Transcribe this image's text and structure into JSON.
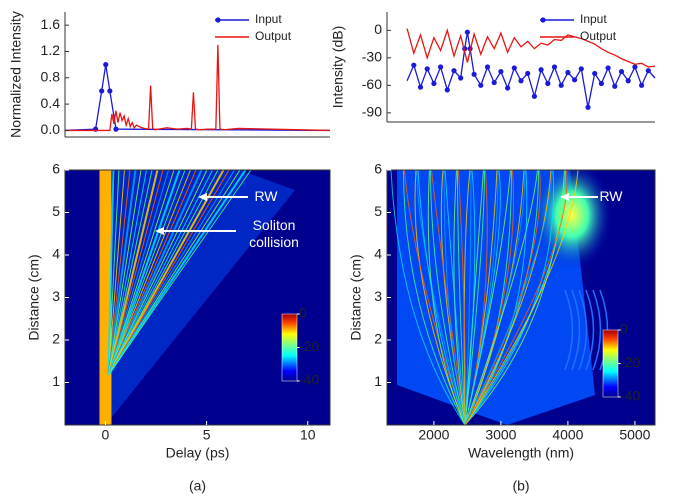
{
  "chart_data": [
    {
      "type": "line",
      "y_label": "Normalized Intensity",
      "xlim": [
        -2,
        11
      ],
      "ylim": [
        -0.1,
        1.8
      ],
      "yticks": [
        {
          "value": 0,
          "label": "0.0"
        },
        0.4,
        0.8,
        1.2,
        1.6
      ],
      "legend": "upper right",
      "series": [
        {
          "name": "Input",
          "color": "#1a1ad8",
          "marker": "circle",
          "x": [
            -2,
            -0.5,
            -0.2,
            0,
            0.2,
            0.5,
            11
          ],
          "values": [
            0,
            0.02,
            0.6,
            1.0,
            0.6,
            0.02,
            0
          ]
        },
        {
          "name": "Output",
          "color": "#e8140f",
          "x": [
            -2,
            0.2,
            0.3,
            0.4,
            0.5,
            0.6,
            0.7,
            0.8,
            0.9,
            1.0,
            1.1,
            1.2,
            1.3,
            1.4,
            1.5,
            1.7,
            1.9,
            2.1,
            2.2,
            2.3,
            2.4,
            2.6,
            3.0,
            3.5,
            4.0,
            4.2,
            4.3,
            4.4,
            4.6,
            5.0,
            5.4,
            5.5,
            5.6,
            5.8,
            6.5,
            11
          ],
          "values": [
            0,
            0,
            0.25,
            0.1,
            0.3,
            0.12,
            0.27,
            0.15,
            0.22,
            0.08,
            0.18,
            0.06,
            0.12,
            0.04,
            0.08,
            0.05,
            0.03,
            0.02,
            0.68,
            0.03,
            0.01,
            0.02,
            0.04,
            0.02,
            0.03,
            0.02,
            0.58,
            0.02,
            0.01,
            0.02,
            0.02,
            1.3,
            0.02,
            0.01,
            0.03,
            0
          ]
        }
      ]
    },
    {
      "type": "line",
      "y_label": "Intensity (dB)",
      "xlim": [
        1300,
        5300
      ],
      "ylim": [
        -100,
        20
      ],
      "yticks": [
        0,
        -30,
        -60,
        -90
      ],
      "legend": "upper right",
      "series": [
        {
          "name": "Input",
          "color": "#1a1ad8",
          "marker": "circle",
          "x": [
            1600,
            1700,
            1800,
            1900,
            2000,
            2100,
            2200,
            2300,
            2400,
            2460,
            2500,
            2540,
            2600,
            2700,
            2800,
            2900,
            3000,
            3100,
            3200,
            3300,
            3400,
            3500,
            3600,
            3700,
            3800,
            3900,
            4000,
            4100,
            4200,
            4300,
            4400,
            4500,
            4600,
            4700,
            4800,
            4900,
            5000,
            5100,
            5200,
            5300
          ],
          "values": [
            -55,
            -38,
            -62,
            -42,
            -58,
            -40,
            -65,
            -44,
            -52,
            -20,
            -2,
            -20,
            -48,
            -60,
            -40,
            -57,
            -45,
            -63,
            -41,
            -55,
            -47,
            -72,
            -43,
            -58,
            -40,
            -60,
            -46,
            -54,
            -42,
            -84,
            -47,
            -58,
            -41,
            -61,
            -45,
            -55,
            -40,
            -60,
            -44,
            -52
          ]
        },
        {
          "name": "Output",
          "color": "#e8140f",
          "x": [
            1600,
            1700,
            1800,
            1900,
            2000,
            2100,
            2200,
            2300,
            2400,
            2500,
            2600,
            2700,
            2800,
            2900,
            3000,
            3100,
            3200,
            3300,
            3400,
            3500,
            3600,
            3700,
            3800,
            3900,
            4000,
            4100,
            4200,
            4300,
            4400,
            4500,
            4600,
            4700,
            4800,
            4900,
            5000,
            5100,
            5200,
            5300
          ],
          "values": [
            2,
            -25,
            -5,
            -30,
            -8,
            -22,
            0,
            -28,
            -6,
            -35,
            -4,
            -26,
            -7,
            -20,
            -3,
            -24,
            -8,
            -18,
            -12,
            -20,
            -14,
            -16,
            -10,
            -11,
            -5,
            -7,
            -9,
            -12,
            -15,
            -20,
            -24,
            -27,
            -31,
            -34,
            -37,
            -36,
            -40,
            -39
          ]
        }
      ]
    },
    {
      "type": "heatmap",
      "x_label": "Delay (ps)",
      "y_label": "Distance (cm)",
      "caption": "(a)",
      "xlim": [
        -2,
        11.1
      ],
      "ylim": [
        0,
        6
      ],
      "xticks": [
        0,
        5,
        10
      ],
      "yticks": [
        1,
        2,
        3,
        4,
        5,
        6
      ],
      "clim": [
        -40,
        0
      ],
      "cticks": [
        0,
        -20,
        -40
      ],
      "annotations": [
        "RW",
        "Soliton collision"
      ]
    },
    {
      "type": "heatmap",
      "x_label": "Wavelength (nm)",
      "y_label": "Distance (cm)",
      "caption": "(b)",
      "xlim": [
        1300,
        5300
      ],
      "ylim": [
        0,
        6
      ],
      "xticks": [
        2000,
        3000,
        4000,
        5000
      ],
      "yticks": [
        1,
        2,
        3,
        4,
        5,
        6
      ],
      "clim": [
        -40,
        0
      ],
      "cticks": [
        0,
        -20,
        -40
      ],
      "annotations": [
        "RW"
      ]
    }
  ]
}
